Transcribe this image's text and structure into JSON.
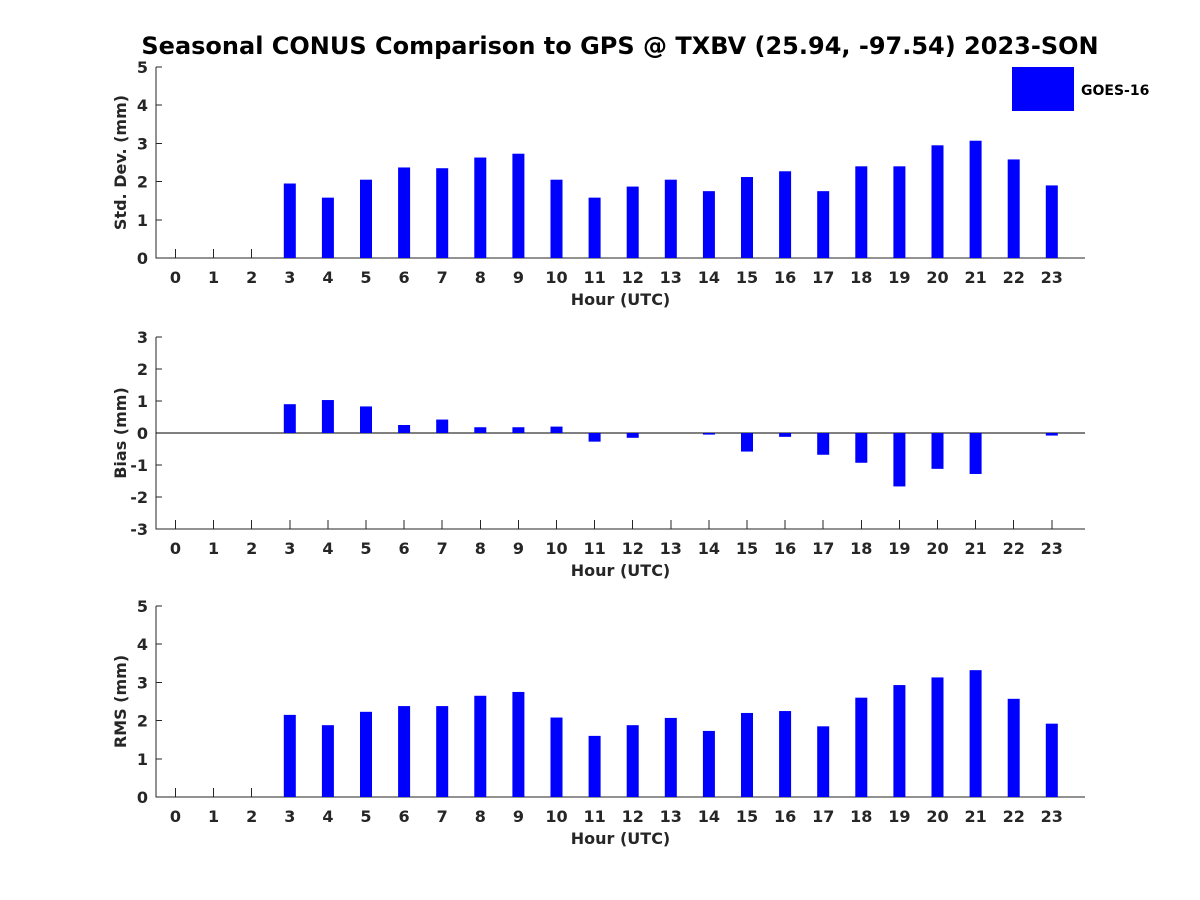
{
  "chart_data": {
    "type": "bar",
    "title": "Seasonal CONUS Comparison to GPS @ TXBV (25.94, -97.54) 2023-SON",
    "legend": {
      "placement": "top-right",
      "entries": [
        "GOES-16"
      ]
    },
    "series_color": "#0000ff",
    "categories": [
      "0",
      "1",
      "2",
      "3",
      "4",
      "5",
      "6",
      "7",
      "8",
      "9",
      "10",
      "11",
      "12",
      "13",
      "14",
      "15",
      "16",
      "17",
      "18",
      "19",
      "20",
      "21",
      "22",
      "23"
    ],
    "panels": [
      {
        "id": "std",
        "xlabel": "Hour (UTC)",
        "ylabel": "Std. Dev. (mm)",
        "ylim": [
          0,
          5
        ],
        "yticks": [
          "0",
          "1",
          "2",
          "3",
          "4",
          "5"
        ],
        "series": [
          {
            "name": "GOES-16",
            "values": [
              null,
              null,
              null,
              1.95,
              1.58,
              2.05,
              2.37,
              2.35,
              2.63,
              2.73,
              2.05,
              1.58,
              1.87,
              2.05,
              1.75,
              2.12,
              2.27,
              1.75,
              2.4,
              2.4,
              2.95,
              3.07,
              2.58,
              1.9
            ]
          }
        ]
      },
      {
        "id": "bias",
        "xlabel": "Hour (UTC)",
        "ylabel": "Bias (mm)",
        "ylim": [
          -3,
          3
        ],
        "yticks": [
          "-3",
          "-2",
          "-1",
          "0",
          "1",
          "2",
          "3"
        ],
        "series": [
          {
            "name": "GOES-16",
            "values": [
              null,
              null,
              null,
              0.9,
              1.03,
              0.83,
              0.25,
              0.42,
              0.18,
              0.18,
              0.2,
              -0.27,
              -0.15,
              0,
              -0.05,
              -0.58,
              -0.12,
              -0.68,
              -0.93,
              -1.67,
              -1.12,
              -1.28,
              0,
              -0.08
            ]
          }
        ]
      },
      {
        "id": "rms",
        "xlabel": "Hour (UTC)",
        "ylabel": "RMS (mm)",
        "ylim": [
          0,
          5
        ],
        "yticks": [
          "0",
          "1",
          "2",
          "3",
          "4",
          "5"
        ],
        "series": [
          {
            "name": "GOES-16",
            "values": [
              null,
              null,
              null,
              2.15,
              1.88,
              2.23,
              2.38,
              2.38,
              2.65,
              2.75,
              2.08,
              1.6,
              1.88,
              2.07,
              1.73,
              2.2,
              2.25,
              1.85,
              2.6,
              2.93,
              3.13,
              3.32,
              2.57,
              1.92
            ]
          }
        ]
      }
    ],
    "grid": false
  }
}
